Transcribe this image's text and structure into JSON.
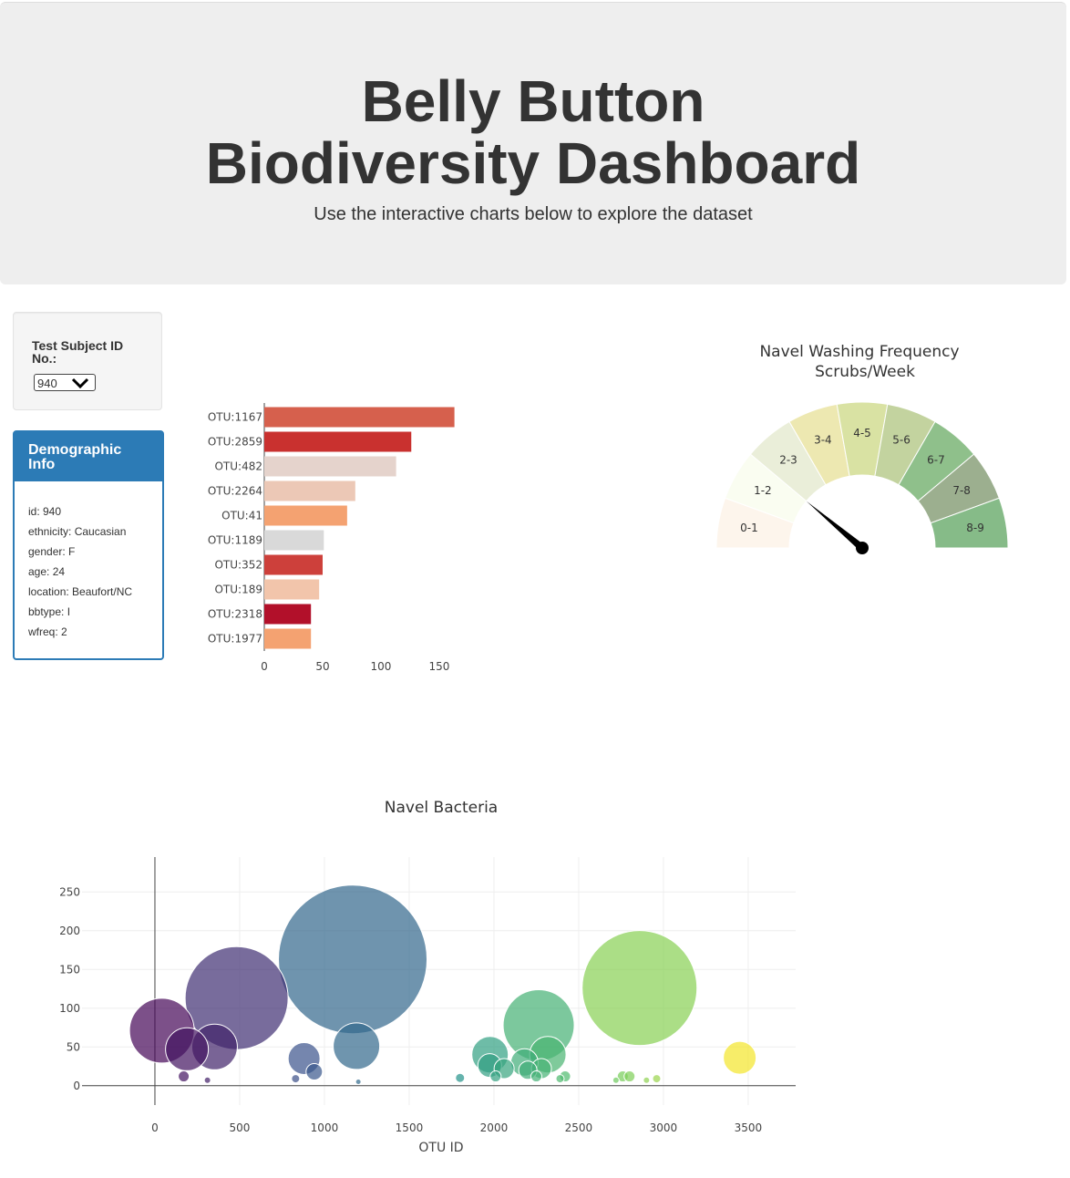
{
  "header": {
    "title": "Belly Button Biodiversity Dashboard",
    "subtitle": "Use the interactive charts below to explore the dataset"
  },
  "selector": {
    "label": "Test Subject ID No.:",
    "selected": "940"
  },
  "demographic": {
    "title": "Demographic Info",
    "rows": [
      "id: 940",
      "ethnicity: Caucasian",
      "gender: F",
      "age: 24",
      "location: Beaufort/NC",
      "bbtype: I",
      "wfreq: 2"
    ]
  },
  "colors": {
    "accent": "#2c7bb6",
    "jumbotron": "#eeeeee"
  },
  "chart_data": [
    {
      "type": "bar",
      "orientation": "horizontal",
      "categories": [
        "OTU:1167",
        "OTU:2859",
        "OTU:482",
        "OTU:2264",
        "OTU:41",
        "OTU:1189",
        "OTU:352",
        "OTU:189",
        "OTU:2318",
        "OTU:1977"
      ],
      "values": [
        163,
        126,
        113,
        78,
        71,
        51,
        50,
        47,
        40,
        40
      ],
      "colors": [
        "#d6604d",
        "#c9312f",
        "#e5d3cc",
        "#ecc8b6",
        "#f4a271",
        "#d9d9d9",
        "#cd403b",
        "#f2c5ab",
        "#b2102a",
        "#f4a271"
      ],
      "xticks": [
        0,
        50,
        100,
        150
      ],
      "xlim": [
        0,
        168
      ]
    },
    {
      "type": "gauge",
      "title": "Navel Washing Frequency",
      "subtitle": "Scrubs/Week",
      "sections": [
        "0-1",
        "1-2",
        "2-3",
        "3-4",
        "4-5",
        "5-6",
        "6-7",
        "7-8",
        "8-9"
      ],
      "section_colors": [
        "#fdf5ec",
        "#fafdf1",
        "#eaeed9",
        "#ede8b1",
        "#d9e2a3",
        "#c3d39f",
        "#8fc08b",
        "#9caf8f",
        "#86bb88"
      ],
      "value": 2,
      "range": [
        0,
        9
      ]
    },
    {
      "type": "scatter",
      "title": "Navel Bacteria",
      "xlabel": "OTU ID",
      "ylabel": "",
      "xticks": [
        0,
        500,
        1000,
        1500,
        2000,
        2500,
        3000,
        3500
      ],
      "yticks": [
        0,
        50,
        100,
        150,
        200,
        250
      ],
      "xlim": [
        -430,
        3780
      ],
      "ylim": [
        -25,
        295
      ],
      "colorscale": "Viridis",
      "points": [
        {
          "x": 41,
          "y": 71
        },
        {
          "x": 189,
          "y": 47
        },
        {
          "x": 352,
          "y": 50
        },
        {
          "x": 482,
          "y": 113
        },
        {
          "x": 1167,
          "y": 163
        },
        {
          "x": 1189,
          "y": 51
        },
        {
          "x": 880,
          "y": 35
        },
        {
          "x": 940,
          "y": 18
        },
        {
          "x": 170,
          "y": 12
        },
        {
          "x": 310,
          "y": 7
        },
        {
          "x": 830,
          "y": 9
        },
        {
          "x": 1200,
          "y": 5
        },
        {
          "x": 1800,
          "y": 10
        },
        {
          "x": 1977,
          "y": 40
        },
        {
          "x": 1975,
          "y": 26
        },
        {
          "x": 2010,
          "y": 12
        },
        {
          "x": 2060,
          "y": 22
        },
        {
          "x": 2180,
          "y": 30
        },
        {
          "x": 2200,
          "y": 20
        },
        {
          "x": 2250,
          "y": 12
        },
        {
          "x": 2264,
          "y": 78
        },
        {
          "x": 2318,
          "y": 40
        },
        {
          "x": 2280,
          "y": 22
        },
        {
          "x": 2420,
          "y": 12
        },
        {
          "x": 2760,
          "y": 12
        },
        {
          "x": 2800,
          "y": 12
        },
        {
          "x": 2960,
          "y": 9
        },
        {
          "x": 2859,
          "y": 126
        },
        {
          "x": 3450,
          "y": 36
        },
        {
          "x": 2720,
          "y": 7
        },
        {
          "x": 2900,
          "y": 7
        },
        {
          "x": 2390,
          "y": 9
        }
      ]
    }
  ]
}
